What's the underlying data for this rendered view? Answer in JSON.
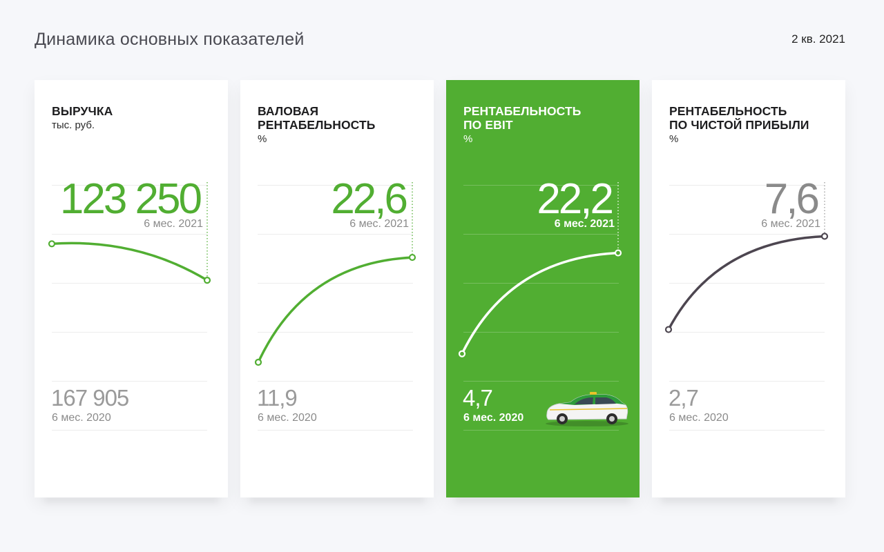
{
  "header": {
    "title": "Динамика основных показателей",
    "period": "2 кв. 2021"
  },
  "colors": {
    "accent_green": "#51ae32",
    "dark_line": "#4d4650",
    "gray_text": "#8a8a8a"
  },
  "cards": [
    {
      "title": "ВЫРУЧКА",
      "unit": "тыс. руб.",
      "current_value": "123 250",
      "current_period": "6 мес. 2021",
      "previous_value": "167 905",
      "previous_period": "6 мес. 2020"
    },
    {
      "title": "ВАЛОВАЯ\nРЕНТАБЕЛЬНОСТЬ",
      "unit": "%",
      "current_value": "22,6",
      "current_period": "6 мес. 2021",
      "previous_value": "11,9",
      "previous_period": "6 мес. 2020"
    },
    {
      "title": "РЕНТАБЕЛЬНОСТЬ\nПО EBIT",
      "unit": "%",
      "current_value": "22,2",
      "current_period": "6 мес. 2021",
      "previous_value": "4,7",
      "previous_period": "6 мес. 2020",
      "image_icon": "taxi-car-icon"
    },
    {
      "title": "РЕНТАБЕЛЬНОСТЬ\nПО ЧИСТОЙ ПРИБЫЛИ",
      "unit": "%",
      "current_value": "7,6",
      "current_period": "6 мес. 2021",
      "previous_value": "2,7",
      "previous_period": "6 мес. 2020"
    }
  ],
  "chart_data": [
    {
      "type": "line",
      "title": "ВЫРУЧКА",
      "x": [
        "6 мес. 2020",
        "6 мес. 2021"
      ],
      "values": [
        167905,
        123250
      ]
    },
    {
      "type": "line",
      "title": "ВАЛОВАЯ РЕНТАБЕЛЬНОСТЬ",
      "x": [
        "6 мес. 2020",
        "6 мес. 2021"
      ],
      "values": [
        11.9,
        22.6
      ]
    },
    {
      "type": "line",
      "title": "РЕНТАБЕЛЬНОСТЬ ПО EBIT",
      "x": [
        "6 мес. 2020",
        "6 мес. 2021"
      ],
      "values": [
        4.7,
        22.2
      ]
    },
    {
      "type": "line",
      "title": "РЕНТАБЕЛЬНОСТЬ ПО ЧИСТОЙ ПРИБЫЛИ",
      "x": [
        "6 мес. 2020",
        "6 мес. 2021"
      ],
      "values": [
        2.7,
        7.6
      ]
    }
  ]
}
